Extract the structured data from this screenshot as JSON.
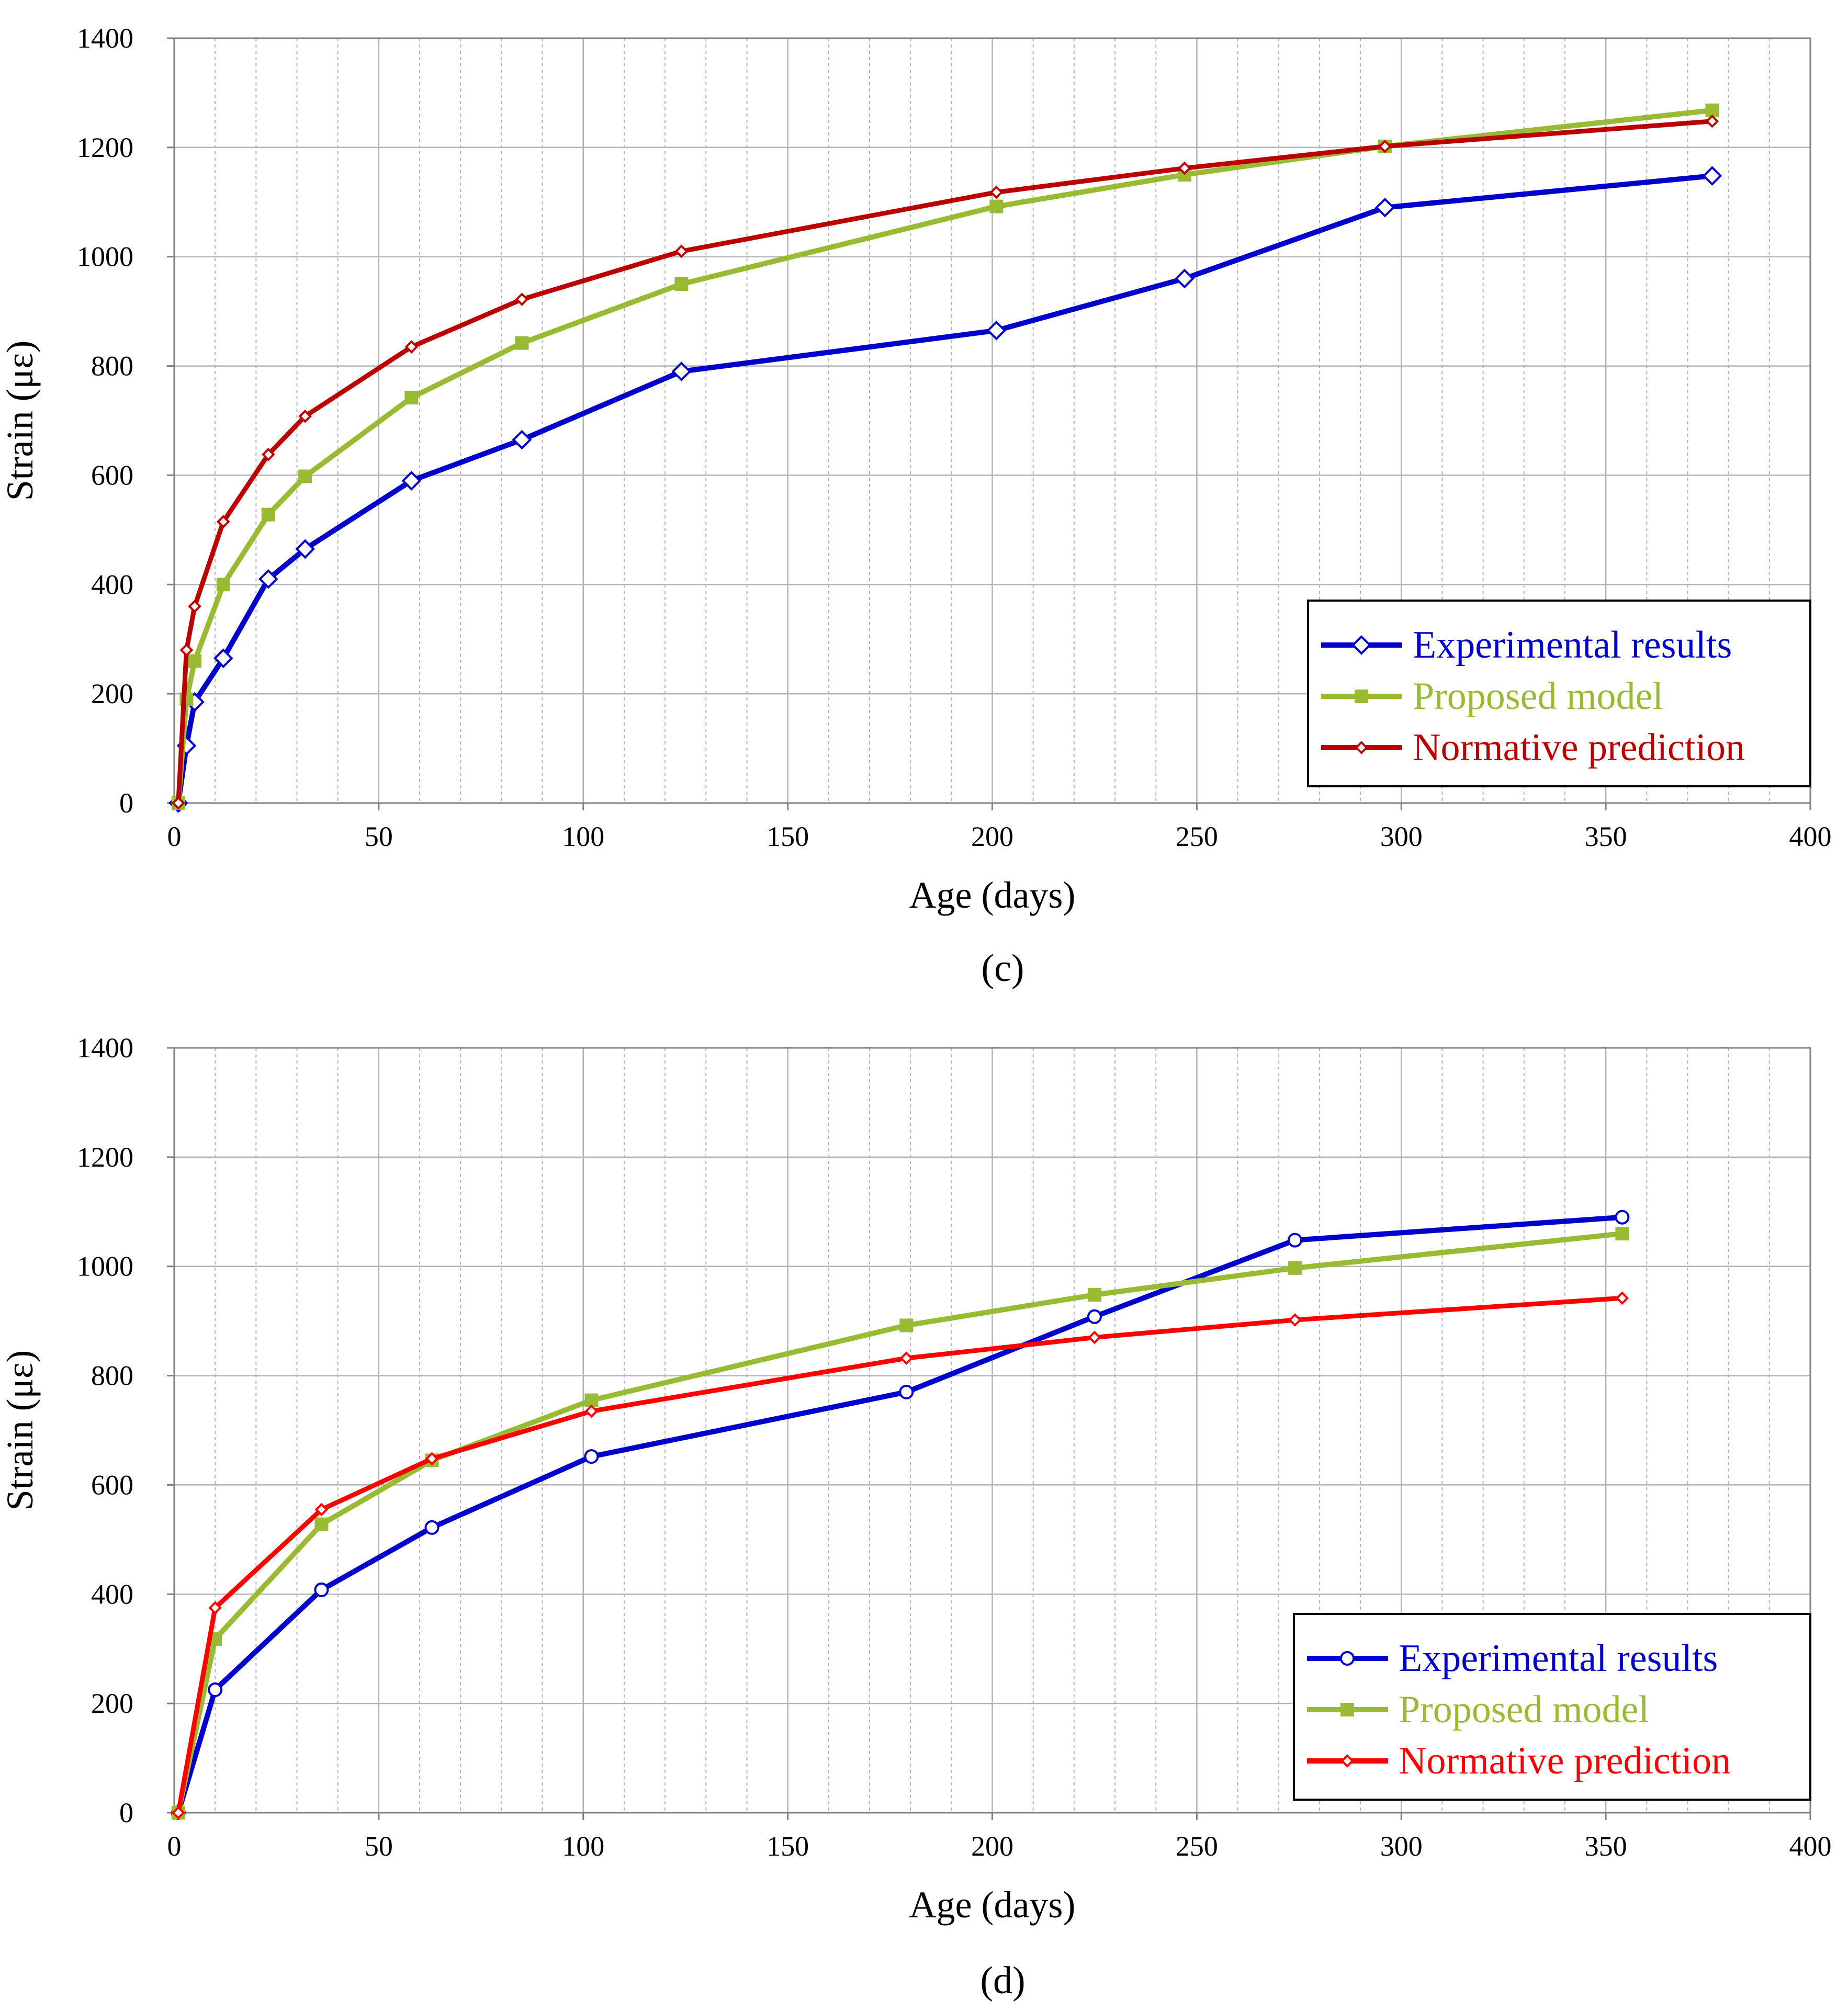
{
  "colors": {
    "blue": "#0000CC",
    "green": "#99BB33",
    "darkred": "#BB0000",
    "red": "#FF0000",
    "grid": "#b3b3b3",
    "axis": "#000000"
  },
  "chart_data": [
    {
      "type": "line",
      "panel_label": "(c)",
      "panel_letter": "c",
      "xlabel": "Age (days)",
      "ylabel": "Strain (με)",
      "xlim": [
        0,
        400
      ],
      "ylim": [
        0,
        1400
      ],
      "xticks": [
        0,
        50,
        100,
        150,
        200,
        250,
        300,
        350,
        400
      ],
      "yticks": [
        0,
        200,
        400,
        600,
        800,
        1000,
        1200,
        1400
      ],
      "grid": true,
      "legend_position": "bottom-right",
      "series": [
        {
          "name": "Experimental results",
          "color": "#0000CC",
          "marker": "diamond-open",
          "x": [
            1,
            3,
            5,
            12,
            23,
            32,
            58,
            85,
            124,
            201,
            247,
            296,
            376
          ],
          "y": [
            0,
            105,
            185,
            265,
            410,
            465,
            590,
            665,
            790,
            865,
            960,
            1090,
            1148
          ]
        },
        {
          "name": "Proposed model",
          "color": "#99BB33",
          "marker": "square",
          "x": [
            1,
            3,
            5,
            12,
            23,
            32,
            58,
            85,
            124,
            201,
            247,
            296,
            376
          ],
          "y": [
            0,
            190,
            260,
            400,
            528,
            598,
            742,
            842,
            950,
            1092,
            1150,
            1202,
            1268
          ]
        },
        {
          "name": "Normative prediction",
          "color": "#BB0000",
          "marker": "diamond-small",
          "x": [
            1,
            3,
            5,
            12,
            23,
            32,
            58,
            85,
            124,
            201,
            247,
            296,
            376
          ],
          "y": [
            0,
            280,
            360,
            515,
            638,
            708,
            835,
            922,
            1010,
            1118,
            1162,
            1202,
            1248
          ]
        }
      ]
    },
    {
      "type": "line",
      "panel_label": "(d)",
      "panel_letter": "d",
      "xlabel": "Age (days)",
      "ylabel": "Strain (με)",
      "xlim": [
        0,
        400
      ],
      "ylim": [
        0,
        1400
      ],
      "xticks": [
        0,
        50,
        100,
        150,
        200,
        250,
        300,
        350,
        400
      ],
      "yticks": [
        0,
        200,
        400,
        600,
        800,
        1000,
        1200,
        1400
      ],
      "grid": true,
      "legend_position": "bottom-right",
      "series": [
        {
          "name": "Experimental results",
          "color": "#0000CC",
          "marker": "circle-open",
          "x": [
            1,
            10,
            36,
            63,
            102,
            179,
            225,
            274,
            354
          ],
          "y": [
            0,
            225,
            408,
            522,
            652,
            770,
            908,
            1048,
            1090
          ]
        },
        {
          "name": "Proposed model",
          "color": "#99BB33",
          "marker": "square",
          "x": [
            1,
            10,
            36,
            63,
            102,
            179,
            225,
            274,
            354
          ],
          "y": [
            0,
            318,
            528,
            645,
            755,
            892,
            948,
            997,
            1060
          ]
        },
        {
          "name": "Normative prediction",
          "color": "#FF0000",
          "marker": "diamond-small",
          "x": [
            1,
            10,
            36,
            63,
            102,
            179,
            225,
            274,
            354
          ],
          "y": [
            0,
            375,
            555,
            648,
            735,
            832,
            870,
            902,
            942
          ]
        }
      ]
    }
  ]
}
